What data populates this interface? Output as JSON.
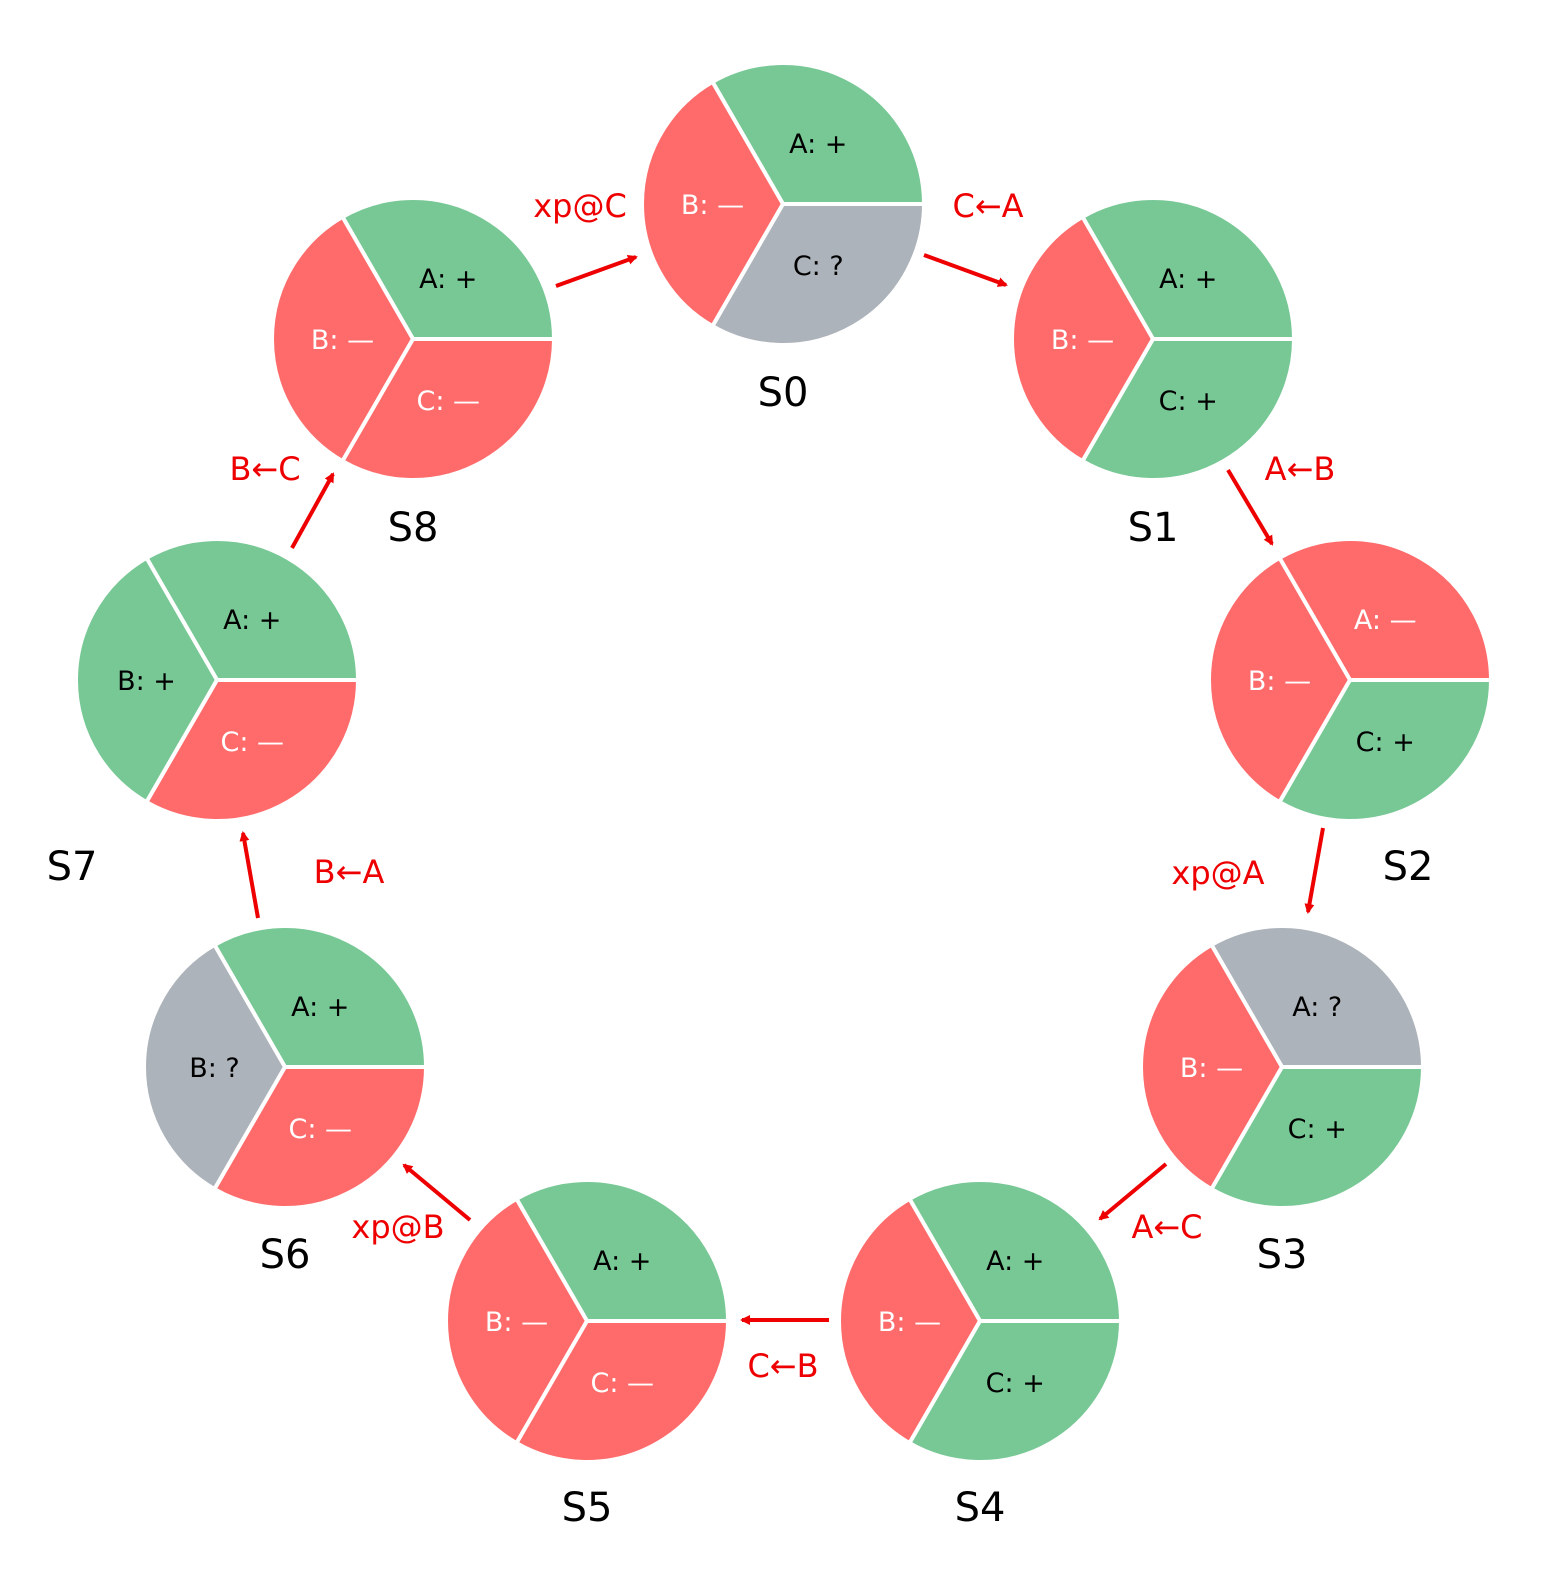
{
  "colors": {
    "plus": "#78c896",
    "minus": "#ff6b6b",
    "unknown": "#adb3ba",
    "arrow": "#ee0000",
    "sector_border": "#ffffff",
    "text_dark": "#000000",
    "text_light": "#ffffff"
  },
  "states": [
    {
      "id": "S0",
      "label": "S0",
      "sectors": {
        "A": {
          "label": "A: +",
          "value": "plus"
        },
        "B": {
          "label": "B: —",
          "value": "minus"
        },
        "C": {
          "label": "C: ?",
          "value": "unknown"
        }
      }
    },
    {
      "id": "S1",
      "label": "S1",
      "sectors": {
        "A": {
          "label": "A: +",
          "value": "plus"
        },
        "B": {
          "label": "B: —",
          "value": "minus"
        },
        "C": {
          "label": "C: +",
          "value": "plus"
        }
      }
    },
    {
      "id": "S2",
      "label": "S2",
      "sectors": {
        "A": {
          "label": "A: —",
          "value": "minus"
        },
        "B": {
          "label": "B: —",
          "value": "minus"
        },
        "C": {
          "label": "C: +",
          "value": "plus"
        }
      }
    },
    {
      "id": "S3",
      "label": "S3",
      "sectors": {
        "A": {
          "label": "A: ?",
          "value": "unknown"
        },
        "B": {
          "label": "B: —",
          "value": "minus"
        },
        "C": {
          "label": "C: +",
          "value": "plus"
        }
      }
    },
    {
      "id": "S4",
      "label": "S4",
      "sectors": {
        "A": {
          "label": "A: +",
          "value": "plus"
        },
        "B": {
          "label": "B: —",
          "value": "minus"
        },
        "C": {
          "label": "C: +",
          "value": "plus"
        }
      }
    },
    {
      "id": "S5",
      "label": "S5",
      "sectors": {
        "A": {
          "label": "A: +",
          "value": "plus"
        },
        "B": {
          "label": "B: —",
          "value": "minus"
        },
        "C": {
          "label": "C: —",
          "value": "minus"
        }
      }
    },
    {
      "id": "S6",
      "label": "S6",
      "sectors": {
        "A": {
          "label": "A: +",
          "value": "plus"
        },
        "B": {
          "label": "B: ?",
          "value": "unknown"
        },
        "C": {
          "label": "C: —",
          "value": "minus"
        }
      }
    },
    {
      "id": "S7",
      "label": "S7",
      "sectors": {
        "A": {
          "label": "A: +",
          "value": "plus"
        },
        "B": {
          "label": "B: +",
          "value": "plus"
        },
        "C": {
          "label": "C: —",
          "value": "minus"
        }
      }
    },
    {
      "id": "S8",
      "label": "S8",
      "sectors": {
        "A": {
          "label": "A: +",
          "value": "plus"
        },
        "B": {
          "label": "B: —",
          "value": "minus"
        },
        "C": {
          "label": "C: —",
          "value": "minus"
        }
      }
    }
  ],
  "transitions": [
    {
      "from": "S0",
      "to": "S1",
      "label": "C←A"
    },
    {
      "from": "S1",
      "to": "S2",
      "label": "A←B"
    },
    {
      "from": "S2",
      "to": "S3",
      "label": "xp@A"
    },
    {
      "from": "S3",
      "to": "S4",
      "label": "A←C"
    },
    {
      "from": "S4",
      "to": "S5",
      "label": "C←B"
    },
    {
      "from": "S5",
      "to": "S6",
      "label": "xp@B"
    },
    {
      "from": "S6",
      "to": "S7",
      "label": "B←A"
    },
    {
      "from": "S7",
      "to": "S8",
      "label": "B←C"
    },
    {
      "from": "S8",
      "to": "S0",
      "label": "xp@C"
    }
  ]
}
